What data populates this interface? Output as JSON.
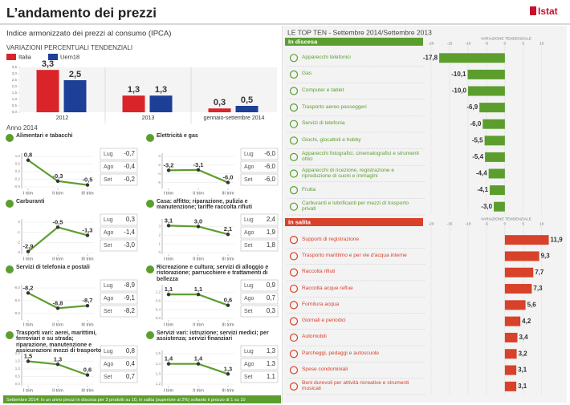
{
  "title": "L’andamento dei prezzi",
  "logo": "Istat",
  "section_year": "Anno 2014",
  "top_ten_title": "LE TOP TEN - Settembre 2014/Settembre 2013",
  "footnote": "Settembre 2014: In un anno prezzi in discesa per 3 prodotti su 10, in salita (superiore al 2%) soltanto il prezzo di 1 su 10",
  "chart_data": [
    {
      "type": "bar",
      "title": "Indice armonizzato dei prezzi al consumo (IPCA)",
      "subtitle": "VARIAZIONI PERCENTUALI TENDENZIALI",
      "categories": [
        "2012",
        "2013",
        "gennaio-settembre 2014"
      ],
      "series": [
        {
          "name": "Italia",
          "color": "#d9252a",
          "values": [
            3.3,
            1.3,
            0.3
          ],
          "value_labels": [
            "3,3",
            "1,3",
            "0,3"
          ]
        },
        {
          "name": "Uem18",
          "color": "#1d3f98",
          "values": [
            2.5,
            1.3,
            0.5
          ],
          "value_labels": [
            "2,5",
            "1,3",
            "0,5"
          ]
        }
      ],
      "ylim": [
        0,
        3.5
      ],
      "yticks": [
        {
          "value": 0,
          "label": "0,0"
        },
        {
          "value": 0.5,
          "label": "0,5"
        },
        {
          "value": 1,
          "label": "1,0"
        },
        {
          "value": 1.5,
          "label": "1,5"
        },
        {
          "value": 2,
          "label": "2,0"
        },
        {
          "value": 2.5,
          "label": "2,5"
        },
        {
          "value": 3,
          "label": "3,0"
        },
        {
          "value": 3.5,
          "label": "3,5"
        }
      ]
    },
    {
      "type": "line",
      "title": "Alimentari e tabacchi",
      "color": "#5c9e2e",
      "categories": [
        "I trim",
        "II trim",
        "III trim"
      ],
      "values": [
        0.8,
        -0.3,
        -0.5
      ],
      "value_labels": [
        "0,8",
        "-0,3",
        "-0,5"
      ],
      "ylim": [
        -0.6,
        1.0
      ],
      "yticks": [
        {
          "value": -0.6,
          "label": "-0,6"
        },
        {
          "value": -0.2,
          "label": "-0,2"
        },
        {
          "value": 0.2,
          "label": "0,2"
        },
        {
          "value": 0.6,
          "label": "0,6"
        },
        {
          "value": 1,
          "label": "1,0"
        }
      ],
      "months": [
        "Lug",
        "Ago",
        "Set"
      ],
      "monthly_values": [
        "-0,7",
        "-0,4",
        "-0,2"
      ]
    },
    {
      "type": "line",
      "title": "Elettricità e gas",
      "color": "#5c9e2e",
      "categories": [
        "I trim",
        "II trim",
        "III trim"
      ],
      "values": [
        -3.2,
        -3.1,
        -6.0
      ],
      "value_labels": [
        "-3,2",
        "-3,1",
        "-6,0"
      ],
      "ylim": [
        -7,
        0
      ],
      "yticks": [
        -6,
        -4,
        -2,
        0
      ],
      "months": [
        "Lug",
        "Ago",
        "Set"
      ],
      "monthly_values": [
        "-6,0",
        "-6,0",
        "-6,0"
      ]
    },
    {
      "type": "line",
      "title": "Carburanti",
      "color": "#5c9e2e",
      "categories": [
        "I trim",
        "II trim",
        "III trim"
      ],
      "values": [
        -2.9,
        -0.5,
        -1.3
      ],
      "value_labels": [
        "-2,9",
        "-0,5",
        "-1,3"
      ],
      "ylim": [
        -3,
        0
      ],
      "yticks": [
        -3,
        -2,
        -1,
        0
      ],
      "months": [
        "Lug",
        "Ago",
        "Set"
      ],
      "monthly_values": [
        "0,3",
        "-1,4",
        "-3,0"
      ]
    },
    {
      "type": "line",
      "title": "Casa: affitto; riparazione, pulizia e manutenzione; tariffe raccolta rifiuti",
      "color": "#5c9e2e",
      "categories": [
        "I trim",
        "II trim",
        "III trim"
      ],
      "values": [
        3.1,
        3.0,
        2.1
      ],
      "value_labels": [
        "3,1",
        "3,0",
        "2,1"
      ],
      "ylim": [
        0,
        3.5
      ],
      "yticks": [
        0,
        1,
        2,
        3
      ],
      "months": [
        "Lug",
        "Ago",
        "Set"
      ],
      "monthly_values": [
        "2,4",
        "1,9",
        "1,8"
      ]
    },
    {
      "type": "line",
      "title": "Servizi di telefonia e postali",
      "color": "#5c9e2e",
      "categories": [
        "I trim",
        "II trim",
        "III trim"
      ],
      "values": [
        -8.2,
        -8.8,
        -8.7
      ],
      "value_labels": [
        "-8,2",
        "-8,8",
        "-8,7"
      ],
      "ylim": [
        -9.2,
        -8.0
      ],
      "yticks": [
        {
          "value": -9,
          "label": "-9,0"
        },
        {
          "value": -8.5,
          "label": "-8,5"
        },
        {
          "value": -8,
          "label": "-8,0"
        }
      ],
      "months": [
        "Lug",
        "Ago",
        "Set"
      ],
      "monthly_values": [
        "-8,9",
        "-9,1",
        "-8,2"
      ]
    },
    {
      "type": "line",
      "title": "Ricreazione e cultura; servizi di alloggio e ristorazione; parrucchiere e trattamenti di bellezza",
      "color": "#5c9e2e",
      "categories": [
        "I trim",
        "II trim",
        "III trim"
      ],
      "values": [
        1.1,
        1.1,
        0.6
      ],
      "value_labels": [
        "1,1",
        "1,1",
        "0,6"
      ],
      "ylim": [
        0,
        1.4
      ],
      "yticks": [
        {
          "value": 0,
          "label": "0,0"
        },
        {
          "value": 0.4,
          "label": "0,4"
        },
        {
          "value": 0.8,
          "label": "0,8"
        },
        {
          "value": 1.2,
          "label": "1,2"
        }
      ],
      "months": [
        "Lug",
        "Ago",
        "Set"
      ],
      "monthly_values": [
        "0,9",
        "0,7",
        "0,3"
      ]
    },
    {
      "type": "line",
      "title": "Trasporti vari: aerei, marittimi, ferroviari e su strada; riparazione, manutenzione e assicurazioni mezzi di trasporto",
      "color": "#5c9e2e",
      "categories": [
        "I trim",
        "II trim",
        "III trim"
      ],
      "values": [
        1.5,
        1.3,
        0.6
      ],
      "value_labels": [
        "1,5",
        "1,3",
        "0,6"
      ],
      "ylim": [
        0,
        2
      ],
      "yticks": [
        {
          "value": 0,
          "label": "0,0"
        },
        {
          "value": 0.5,
          "label": "0,5"
        },
        {
          "value": 1,
          "label": "1,0"
        },
        {
          "value": 1.5,
          "label": "1,5"
        },
        {
          "value": 2,
          "label": "2,0"
        }
      ],
      "months": [
        "Lug",
        "Ago",
        "Set"
      ],
      "monthly_values": [
        "0,8",
        "0,4",
        "0,7"
      ]
    },
    {
      "type": "line",
      "title": "Servizi vari: istruzione; servizi medici; per assistenza; servizi finanziari",
      "color": "#5c9e2e",
      "categories": [
        "I trim",
        "II trim",
        "III trim"
      ],
      "values": [
        1.4,
        1.4,
        1.3
      ],
      "value_labels": [
        "1,4",
        "1,4",
        "1,3"
      ],
      "ylim": [
        1.2,
        1.5
      ],
      "yticks": [
        {
          "value": 1.2,
          "label": "1,2"
        },
        {
          "value": 1.3,
          "label": "1,3"
        },
        {
          "value": 1.4,
          "label": "1,4"
        },
        {
          "value": 1.5,
          "label": "1,5"
        }
      ],
      "months": [
        "Lug",
        "Ago",
        "Set"
      ],
      "monthly_values": [
        "1,3",
        "1,3",
        "1,1"
      ]
    },
    {
      "type": "hbar",
      "title": "In discesa",
      "xlabel": "VARIAZIONE TENDENZIALE",
      "color": "#5c9e2e",
      "categories": [
        "Apparecchi telefonici",
        "Gas",
        "Computer e tablet",
        "Trasporto aereo passeggeri",
        "Servizi di telefonia",
        "Giochi, giocattoli e hobby",
        "Apparecchi fotografici, cinematografici e strumenti ottici",
        "Apparecchi di ricezione, registrazione e riproduzione di suoni e immagini",
        "Frutta",
        "Carburanti e lubrificanti per mezzi di trasporto privati"
      ],
      "values": [
        -17.8,
        -10.1,
        -10.0,
        -6.9,
        -6.0,
        -5.5,
        -5.4,
        -4.4,
        -4.1,
        -3.0
      ],
      "value_labels": [
        "-17,8",
        "-10,1",
        "-10,0",
        "-6,9",
        "-6,0",
        "-5,5",
        "-5,4",
        "-4,4",
        "-4,1",
        "-3,0"
      ],
      "xlim": [
        -20,
        12
      ],
      "xticks": [
        -20,
        -15,
        -10,
        -5,
        0,
        5,
        10
      ]
    },
    {
      "type": "hbar",
      "title": "In salita",
      "xlabel": "VARIAZIONE TENDENZIALE",
      "color": "#d8412a",
      "categories": [
        "Supporti di registrazione",
        "Trasporto marittimo e per vie d'acqua interne",
        "Raccolta rifiuti",
        "Raccolta acque reflue",
        "Fornitura acqua",
        "Giornali e periodici",
        "Automobili",
        "Parcheggi, pedaggi e autoscuole",
        "Spese condominiali",
        "Beni durevoli per attività ricreative e strumenti musicali"
      ],
      "values": [
        11.9,
        9.3,
        7.7,
        7.3,
        5.6,
        4.2,
        3.4,
        3.2,
        3.1,
        3.1
      ],
      "value_labels": [
        "11,9",
        "9,3",
        "7,7",
        "7,3",
        "5,6",
        "4,2",
        "3,4",
        "3,2",
        "3,1",
        "3,1"
      ],
      "xlim": [
        -20,
        12
      ],
      "xticks": [
        -20,
        -15,
        -10,
        -5,
        0,
        5,
        10
      ]
    }
  ]
}
